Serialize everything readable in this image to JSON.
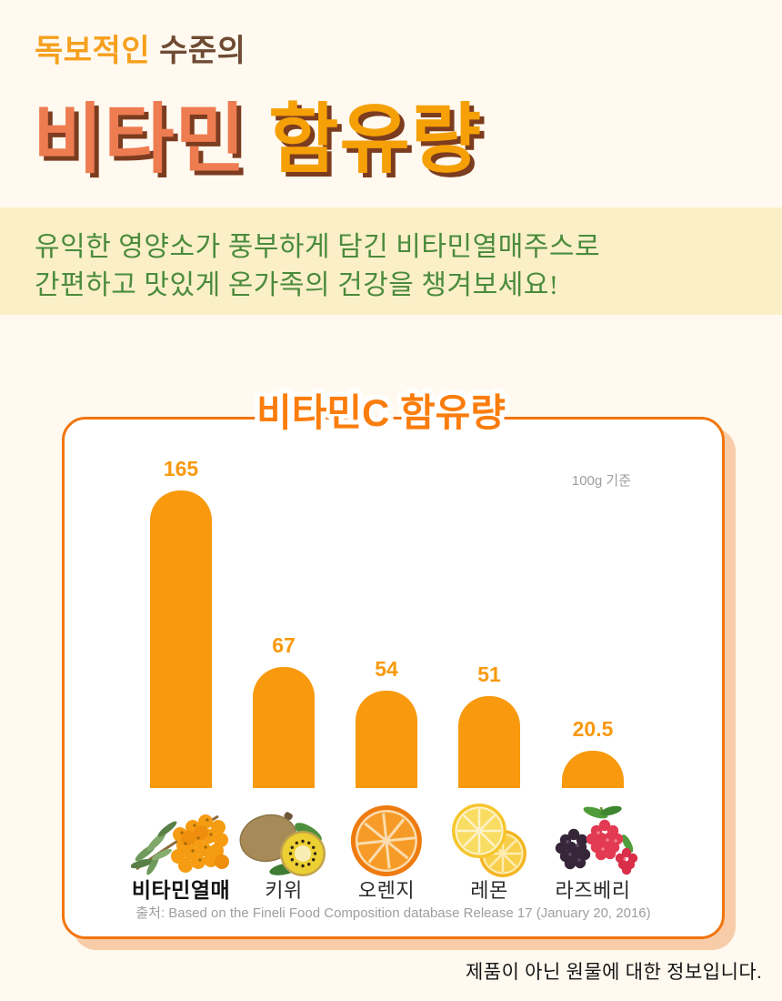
{
  "header": {
    "kicker_accent": "독보적인",
    "kicker_rest": " 수준의",
    "title_accent": "비타민",
    "title_rest": " 함유량"
  },
  "banner": {
    "line1": "유익한 영양소가 풍부하게 담긴 비타민열매주스로",
    "line2": "간편하고 맛있게 온가족의 건강을 챙겨보세요!"
  },
  "chart_card": {
    "title": "비타민C 함유량",
    "unit_note": "100g 기준",
    "source": "출처: Based on the Fineli Food Composition database Release 17 (January 20, 2016)"
  },
  "footnote": "제품이 아닌 원물에 대한 정보입니다.",
  "chart_data": {
    "type": "bar",
    "title": "비타민C 함유량",
    "unit_note": "100g 기준",
    "categories": [
      "비타민열매",
      "키위",
      "오렌지",
      "레몬",
      "라즈베리"
    ],
    "values": [
      165,
      67,
      54,
      51,
      20.5
    ],
    "ylim": [
      0,
      165
    ],
    "grid": false,
    "legend": false,
    "bar_color": "#F8990E",
    "value_label_color": "#F8990E",
    "fruit_icons": [
      "sea-buckthorn-image",
      "kiwi-image",
      "orange-slice-image",
      "lemon-slices-image",
      "raspberry-image"
    ],
    "source": "출처: Based on the Fineli Food Composition database Release 17 (January 20, 2016)"
  },
  "colors": {
    "page_bg": "#FFF9EF",
    "banner_bg": "#FBEFC8",
    "banner_text": "#4A8B3C",
    "kicker_accent": "#F6A01D",
    "kicker_rest": "#6E4B32",
    "title_accent": "#EE7C51",
    "title_rest": "#F5A006",
    "title_shadow": "#7C3C1F",
    "card_border": "#F2750D",
    "card_shadow": "#F8CCA9",
    "chart_title": "#FB7D0D",
    "bar_orange": "#F8990E",
    "muted_text": "#9E9E9E"
  }
}
